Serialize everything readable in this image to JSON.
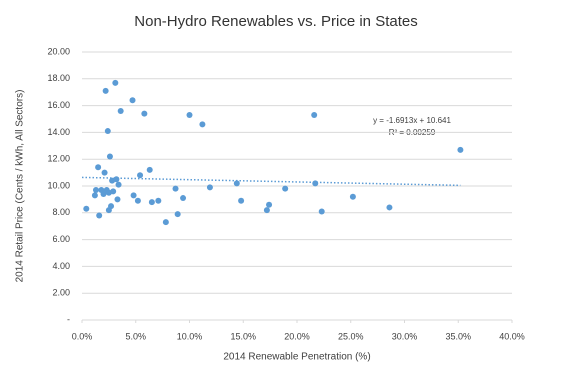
{
  "chart_data": {
    "type": "scatter",
    "title": "Non-Hydro Renewables vs. Price in States",
    "x_label": "2014 Renewable Penetration (%)",
    "y_label": "2014 Retail Price (Cents / kWh, All Sectors)",
    "color": "#5b9bd5",
    "grid": true,
    "xlim": [
      0,
      40
    ],
    "xticks": [
      {
        "value": 0,
        "label": "0.0%"
      },
      {
        "value": 5,
        "label": "5.0%"
      },
      {
        "value": 10,
        "label": "10.0%"
      },
      {
        "value": 15,
        "label": "15.0%"
      },
      {
        "value": 20,
        "label": "20.0%"
      },
      {
        "value": 25,
        "label": "25.0%"
      },
      {
        "value": 30,
        "label": "30.0%"
      },
      {
        "value": 35,
        "label": "35.0%"
      },
      {
        "value": 40,
        "label": "40.0%"
      }
    ],
    "ylim": [
      0,
      20
    ],
    "yticks": [
      {
        "value": 0,
        "label": "-"
      },
      {
        "value": 2,
        "label": "2.00"
      },
      {
        "value": 4,
        "label": "4.00"
      },
      {
        "value": 6,
        "label": "6.00"
      },
      {
        "value": 8,
        "label": "8.00"
      },
      {
        "value": 10,
        "label": "10.00"
      },
      {
        "value": 12,
        "label": "12.00"
      },
      {
        "value": 14,
        "label": "14.00"
      },
      {
        "value": 16,
        "label": "16.00"
      },
      {
        "value": 18,
        "label": "18.00"
      },
      {
        "value": 20,
        "label": "20.00"
      }
    ],
    "x": [
      0.4,
      1.2,
      1.3,
      1.5,
      1.6,
      1.8,
      2.0,
      2.1,
      2.2,
      2.3,
      2.4,
      2.5,
      2.5,
      2.6,
      2.7,
      2.8,
      2.9,
      3.1,
      3.2,
      3.3,
      3.4,
      3.6,
      4.7,
      4.8,
      5.2,
      5.4,
      5.8,
      6.3,
      6.5,
      7.1,
      7.8,
      8.7,
      8.9,
      9.4,
      10.0,
      11.2,
      11.9,
      14.4,
      14.8,
      17.2,
      17.4,
      18.9,
      21.6,
      21.7,
      22.3,
      25.2,
      28.6,
      35.2
    ],
    "values": [
      8.3,
      9.3,
      9.7,
      11.4,
      7.8,
      9.7,
      9.4,
      11.0,
      17.1,
      9.7,
      14.1,
      9.5,
      8.2,
      12.2,
      8.5,
      10.4,
      9.6,
      17.7,
      10.5,
      9.0,
      10.1,
      15.6,
      16.4,
      9.3,
      8.9,
      10.8,
      15.4,
      11.2,
      8.8,
      8.9,
      7.3,
      9.8,
      7.9,
      9.1,
      15.3,
      14.6,
      9.9,
      10.2,
      8.9,
      8.2,
      8.6,
      9.8,
      15.3,
      10.2,
      8.1,
      9.2,
      8.4,
      12.7
    ],
    "trendline": {
      "x": [
        0,
        35.2
      ],
      "values": [
        10.641,
        10.046
      ]
    },
    "annotations": [
      "y = -1.6913x + 10.641",
      "R² = 0.00259"
    ]
  }
}
